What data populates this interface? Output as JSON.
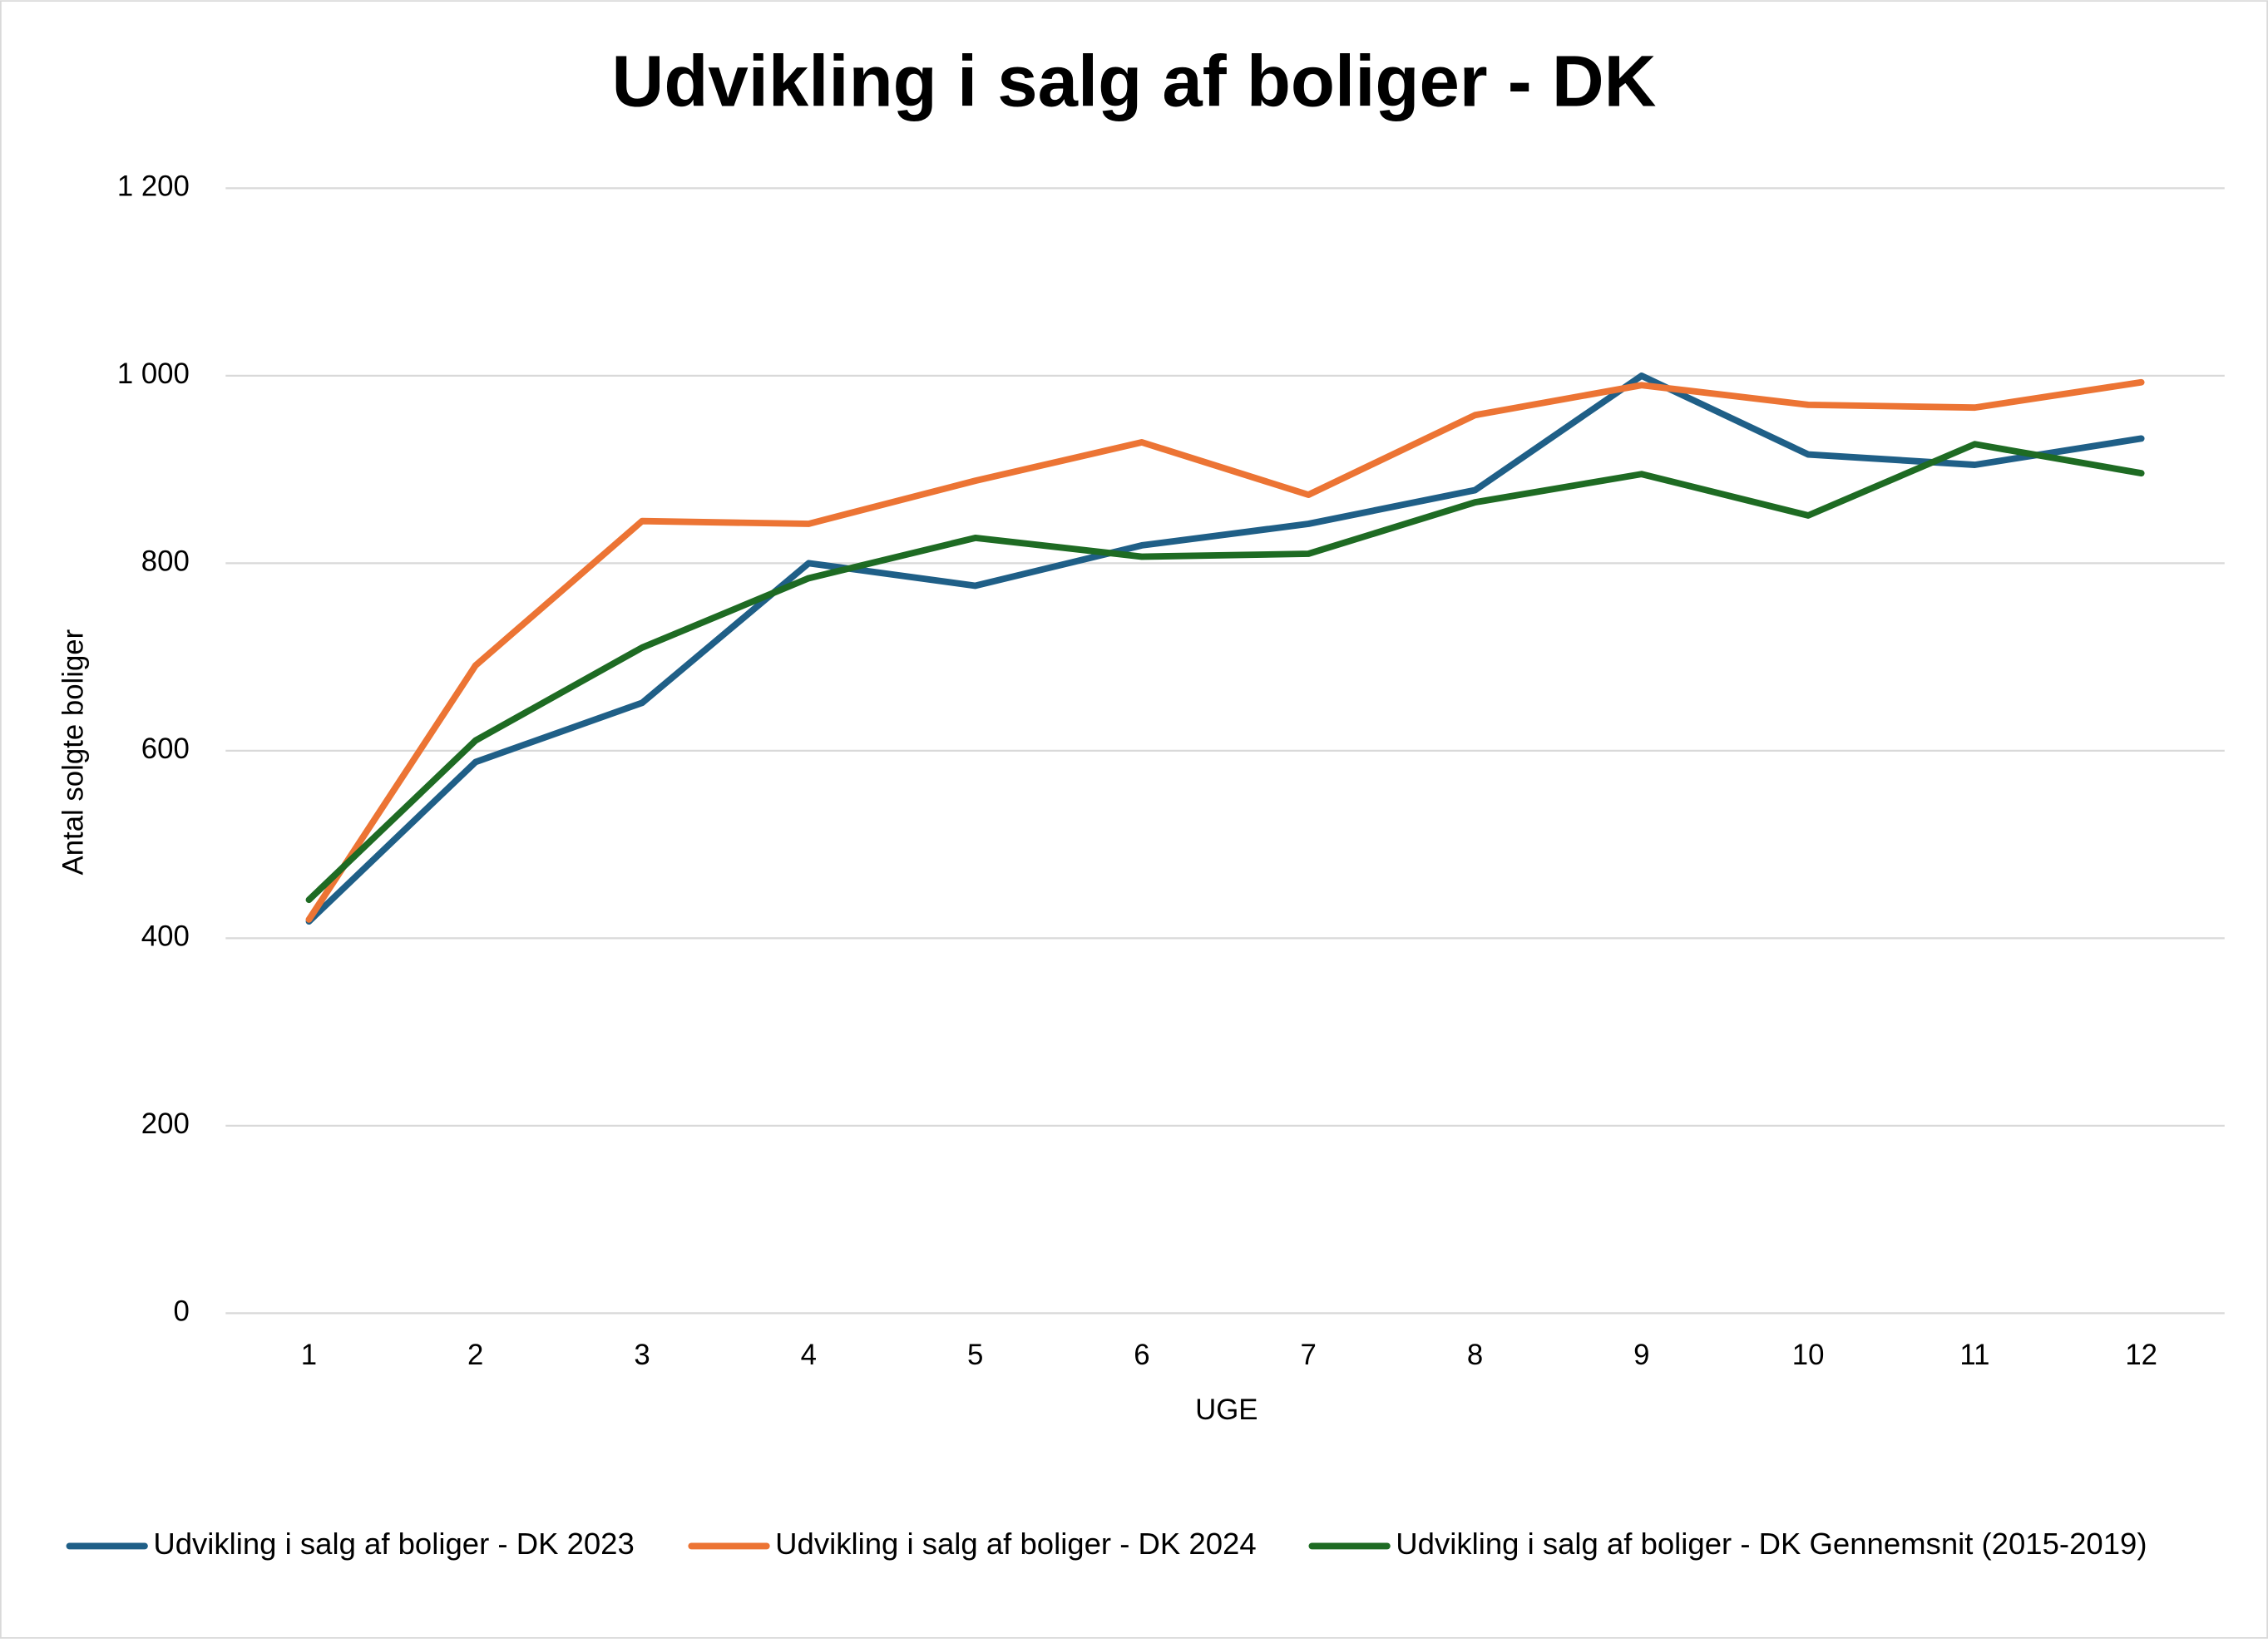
{
  "chart_data": {
    "type": "line",
    "title": "Udvikling i salg af boliger - DK",
    "x_label": "UGE",
    "y_label": "Antal solgte boliger",
    "categories": [
      "1",
      "2",
      "3",
      "4",
      "5",
      "6",
      "7",
      "8",
      "9",
      "10",
      "11",
      "12"
    ],
    "series": [
      {
        "name": "Udvikling i salg af boliger - DK 2023",
        "color": "#1f5f87",
        "values": [
          418,
          588,
          651,
          800,
          776,
          819,
          842,
          878,
          1000,
          916,
          905,
          933
        ]
      },
      {
        "name": "Udvikling i salg af boliger - DK 2024",
        "color": "#ec7434",
        "values": [
          420,
          691,
          845,
          842,
          888,
          929,
          873,
          958,
          990,
          969,
          966,
          993
        ]
      },
      {
        "name": "Udvikling i salg af boliger - DK Gennemsnit (2015-2019)",
        "color": "#1e6b23",
        "values": [
          441,
          611,
          710,
          784,
          827,
          807,
          810,
          865,
          895,
          851,
          927,
          896
        ]
      }
    ],
    "ylim": [
      0,
      1200
    ],
    "yticks": [
      0,
      200,
      400,
      600,
      800,
      {
        "value": 1000,
        "label": "1 000"
      },
      {
        "value": 1200,
        "label": "1 200"
      }
    ],
    "grid": true,
    "legend": "bottom"
  }
}
